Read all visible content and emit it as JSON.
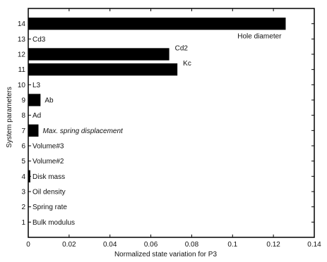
{
  "chart_data": {
    "type": "bar",
    "orientation": "horizontal",
    "title": "",
    "xlabel": "Normalized state variation for P3",
    "ylabel": "System parameters",
    "xlim": [
      0,
      0.14
    ],
    "ylim": [
      0,
      15
    ],
    "x_ticks": [
      "0",
      "0.02",
      "0.04",
      "0.06",
      "0.08",
      "0.1",
      "0.12",
      "0.14"
    ],
    "y_ticks": [
      "1",
      "2",
      "3",
      "4",
      "5",
      "6",
      "7",
      "8",
      "9",
      "10",
      "11",
      "12",
      "13",
      "14"
    ],
    "grid": false,
    "bars": [
      {
        "index": 1,
        "label": "Bulk modulus",
        "value": 0.0
      },
      {
        "index": 2,
        "label": "Spring rate",
        "value": 0.0
      },
      {
        "index": 3,
        "label": "Oil density",
        "value": 0.0
      },
      {
        "index": 4,
        "label": "Disk mass",
        "value": 0.001
      },
      {
        "index": 5,
        "label": "Volume#2",
        "value": 0.0
      },
      {
        "index": 6,
        "label": "Volume#3",
        "value": 0.0
      },
      {
        "index": 7,
        "label": "Max. spring displacement",
        "value": 0.005
      },
      {
        "index": 8,
        "label": "Ad",
        "value": 0.0
      },
      {
        "index": 9,
        "label": "Ab",
        "value": 0.006
      },
      {
        "index": 10,
        "label": "L3",
        "value": 0.0
      },
      {
        "index": 11,
        "label": "Kc",
        "value": 0.073
      },
      {
        "index": 12,
        "label": "Cd2",
        "value": 0.069
      },
      {
        "index": 13,
        "label": "Cd3",
        "value": 0.0
      },
      {
        "index": 14,
        "label": "Hole diameter",
        "value": 0.126
      }
    ]
  }
}
